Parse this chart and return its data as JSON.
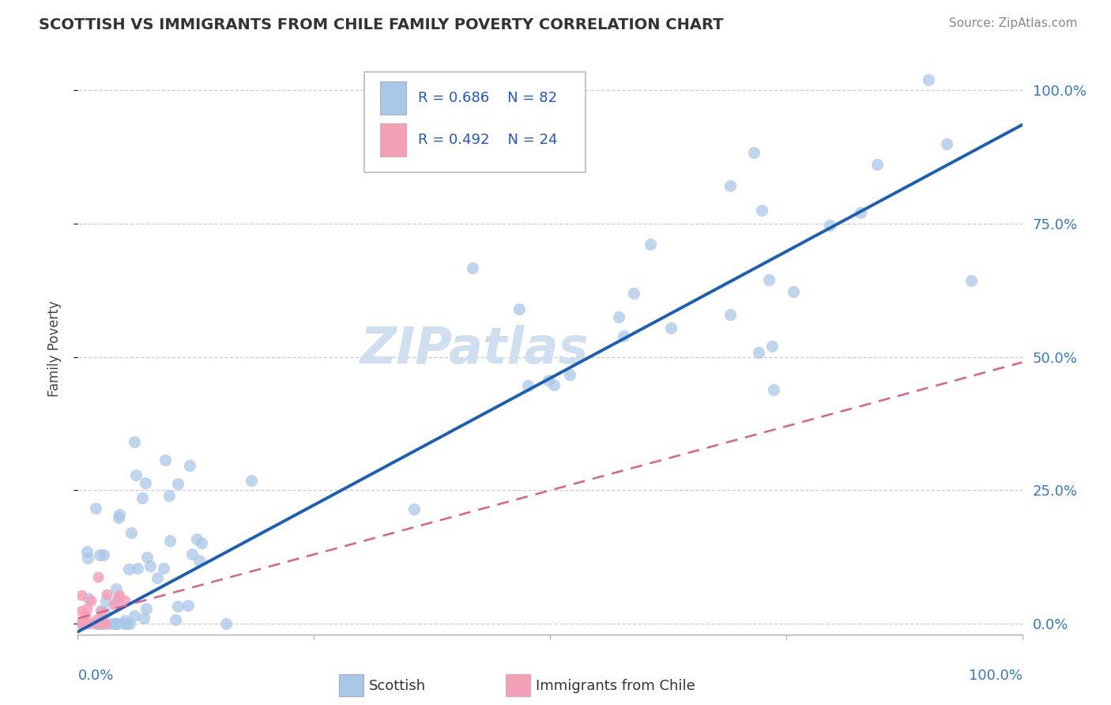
{
  "title": "SCOTTISH VS IMMIGRANTS FROM CHILE FAMILY POVERTY CORRELATION CHART",
  "source": "Source: ZipAtlas.com",
  "ylabel": "Family Poverty",
  "r_scottish": 0.686,
  "n_scottish": 82,
  "r_chile": 0.492,
  "n_chile": 24,
  "scottish_color": "#a8c8e8",
  "chile_color": "#f4a0b8",
  "scottish_line_color": "#1a5fb4",
  "chile_line_color": "#e06080",
  "ytick_labels": [
    "0.0%",
    "25.0%",
    "50.0%",
    "75.0%",
    "100.0%"
  ],
  "ytick_values": [
    0.0,
    0.25,
    0.5,
    0.75,
    1.0
  ],
  "background_color": "#ffffff",
  "grid_color": "#c8c8c8",
  "watermark_color": "#d0dff0"
}
